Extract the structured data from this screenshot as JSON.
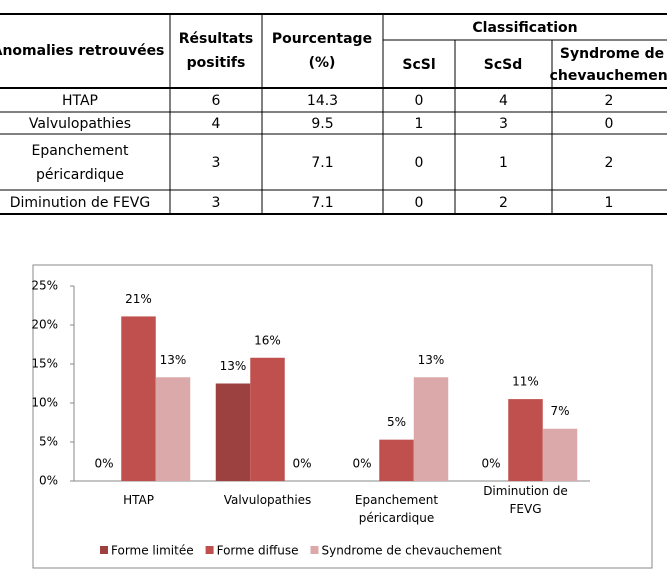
{
  "table": {
    "headers": {
      "anomalies": "Anomalies retrouvées",
      "resultats": "Résultats positifs",
      "pourcentage": "Pourcentage (%)",
      "classification": "Classification",
      "sub": [
        "ScSl",
        "ScSd",
        "Syndrome de chevauchement"
      ]
    },
    "rows": [
      [
        "HTAP",
        "6",
        "14.3",
        "0",
        "4",
        "2"
      ],
      [
        "Valvulopathies",
        "4",
        "9.5",
        "1",
        "3",
        "0"
      ],
      [
        "Epanchement péricardique",
        "3",
        "7.1",
        "0",
        "1",
        "2"
      ],
      [
        "Diminution de FEVG",
        "3",
        "7.1",
        "0",
        "2",
        "1"
      ]
    ]
  },
  "chart_data": {
    "type": "bar",
    "categories": [
      "HTAP",
      "Valvulopathies",
      "Epanchement péricardique",
      "Diminution de FEVG"
    ],
    "series": [
      {
        "name": "Forme limitée",
        "color": "#9c4040",
        "values": [
          0,
          12.5,
          0,
          0
        ],
        "value_labels": [
          "0%",
          "13%",
          "0%",
          "0%"
        ]
      },
      {
        "name": "Forme diffuse",
        "color": "#c0504d",
        "values": [
          21.1,
          15.8,
          5.3,
          10.5
        ],
        "value_labels": [
          "21%",
          "16%",
          "5%",
          "11%"
        ]
      },
      {
        "name": "Syndrome de chevauchement",
        "color": "#dba9aa",
        "values": [
          13.3,
          0,
          13.3,
          6.7
        ],
        "value_labels": [
          "13%",
          "0%",
          "13%",
          "7%"
        ]
      }
    ],
    "ylim": [
      0,
      25
    ],
    "yticks": [
      {
        "value": 0,
        "label": "0%"
      },
      {
        "value": 5,
        "label": "5%"
      },
      {
        "value": 10,
        "label": "10%"
      },
      {
        "value": 15,
        "label": "15%"
      },
      {
        "value": 20,
        "label": "20%"
      },
      {
        "value": 25,
        "label": "25%"
      }
    ],
    "legend": "bottom"
  }
}
